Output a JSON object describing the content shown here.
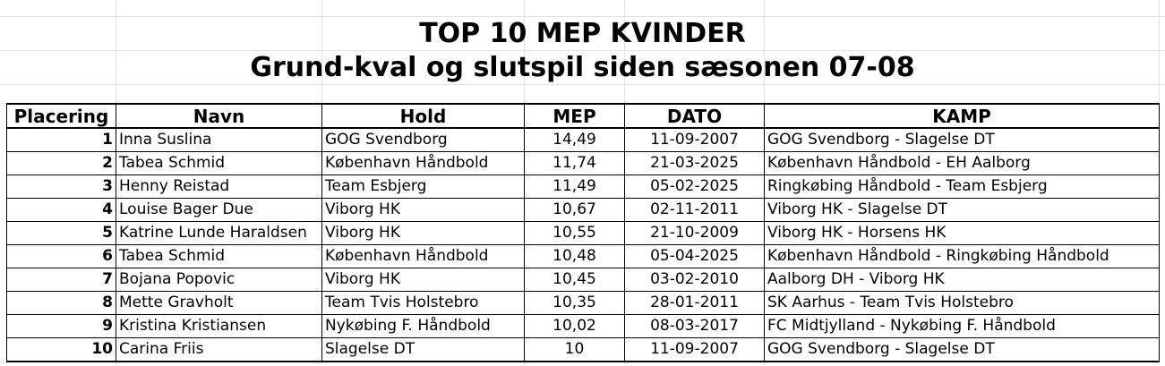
{
  "title": "TOP 10 MEP KVINDER",
  "subtitle": "Grund-kval og slutspil siden sæsonen 07-08",
  "columns": {
    "placering": "Placering",
    "navn": "Navn",
    "hold": "Hold",
    "mep": "MEP",
    "dato": "DATO",
    "kamp": "KAMP"
  },
  "rows": [
    {
      "placering": "1",
      "navn": "Inna Suslina",
      "hold": "GOG Svendborg",
      "mep": "14,49",
      "dato": "11-09-2007",
      "kamp": "GOG Svendborg - Slagelse DT"
    },
    {
      "placering": "2",
      "navn": "Tabea Schmid",
      "hold": "København Håndbold",
      "mep": "11,74",
      "dato": "21-03-2025",
      "kamp": "København Håndbold - EH Aalborg"
    },
    {
      "placering": "3",
      "navn": "Henny Reistad",
      "hold": "Team Esbjerg",
      "mep": "11,49",
      "dato": "05-02-2025",
      "kamp": "Ringkøbing Håndbold - Team Esbjerg"
    },
    {
      "placering": "4",
      "navn": "Louise Bager Due",
      "hold": "Viborg HK",
      "mep": "10,67",
      "dato": "02-11-2011",
      "kamp": "Viborg HK - Slagelse DT"
    },
    {
      "placering": "5",
      "navn": "Katrine Lunde Haraldsen",
      "hold": "Viborg HK",
      "mep": "10,55",
      "dato": "21-10-2009",
      "kamp": "Viborg HK - Horsens HK"
    },
    {
      "placering": "6",
      "navn": "Tabea Schmid",
      "hold": "København Håndbold",
      "mep": "10,48",
      "dato": "05-04-2025",
      "kamp": "København Håndbold - Ringkøbing Håndbold"
    },
    {
      "placering": "7",
      "navn": "Bojana Popovic",
      "hold": "Viborg HK",
      "mep": "10,45",
      "dato": "03-02-2010",
      "kamp": "Aalborg DH - Viborg HK"
    },
    {
      "placering": "8",
      "navn": "Mette Gravholt",
      "hold": "Team Tvis Holstebro",
      "mep": "10,35",
      "dato": "28-01-2011",
      "kamp": "SK Aarhus - Team Tvis Holstebro"
    },
    {
      "placering": "9",
      "navn": "Kristina Kristiansen",
      "hold": "Nykøbing F. Håndbold",
      "mep": "10,02",
      "dato": "08-03-2017",
      "kamp": "FC Midtjylland - Nykøbing F. Håndbold"
    },
    {
      "placering": "10",
      "navn": "Carina Friis",
      "hold": "Slagelse DT",
      "mep": "10",
      "dato": "11-09-2007",
      "kamp": "GOG Svendborg - Slagelse DT"
    }
  ]
}
